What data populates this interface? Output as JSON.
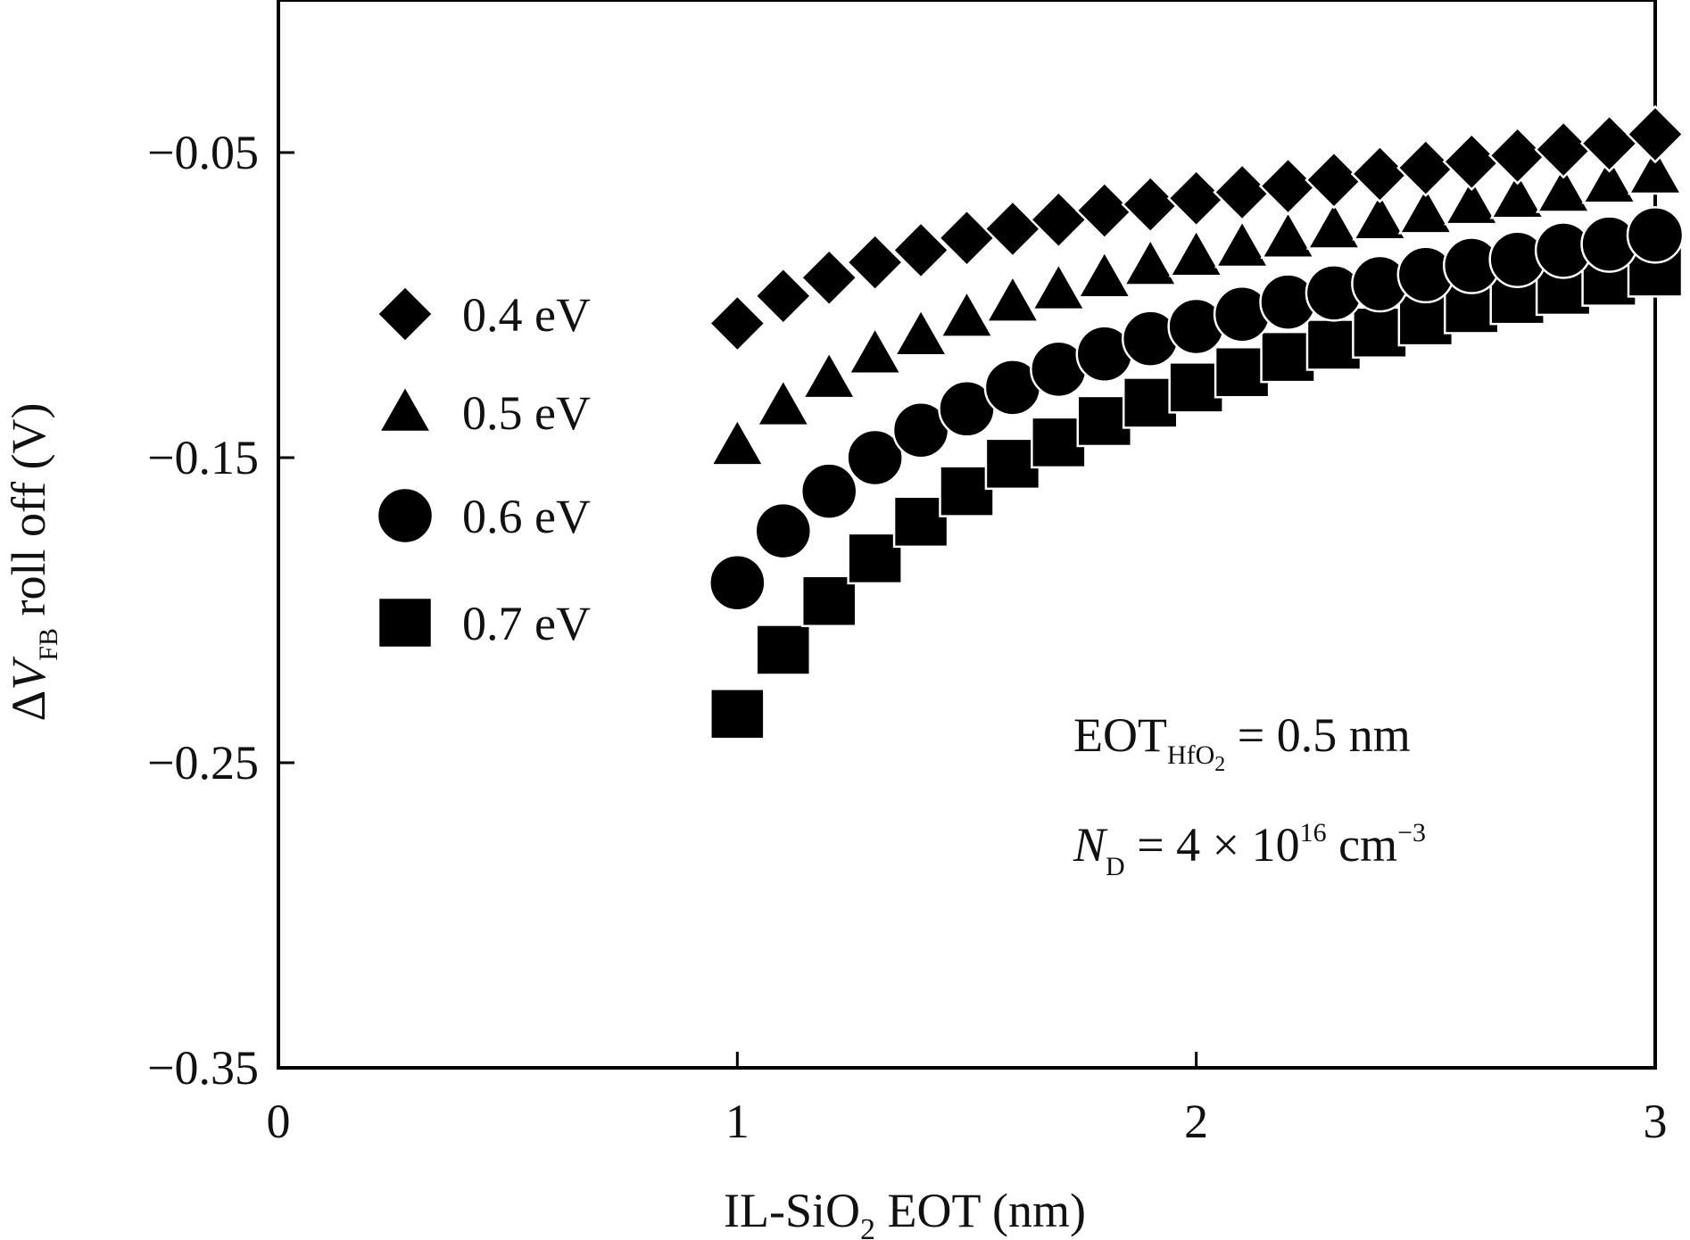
{
  "chart_data": {
    "type": "scatter",
    "xlabel": {
      "main": "IL-SiO",
      "sub": "2",
      "tail": " EOT (nm)"
    },
    "ylabel": {
      "delta": "Δ",
      "var": "V",
      "sub": "FB",
      "tail": " roll off (V)"
    },
    "xlim": [
      0,
      3
    ],
    "ylim": [
      -0.35,
      0.0
    ],
    "x_ticks": [
      {
        "value": 0,
        "label": "0"
      },
      {
        "value": 1,
        "label": "1"
      },
      {
        "value": 2,
        "label": "2"
      },
      {
        "value": 3,
        "label": "3"
      }
    ],
    "y_ticks": [
      {
        "value": -0.05,
        "label": "−0.05"
      },
      {
        "value": -0.15,
        "label": "−0.15"
      },
      {
        "value": -0.25,
        "label": "−0.25"
      },
      {
        "value": -0.35,
        "label": "−0.35"
      }
    ],
    "grid": false,
    "legend_position": "upper-left",
    "series": [
      {
        "name": "0.4 eV",
        "marker": "diamond",
        "color": "#000000",
        "x": [
          1.0,
          1.1,
          1.2,
          1.3,
          1.4,
          1.5,
          1.6,
          1.7,
          1.8,
          1.9,
          2.0,
          2.1,
          2.2,
          2.3,
          2.4,
          2.5,
          2.6,
          2.7,
          2.8,
          2.9,
          3.0
        ],
        "y": [
          -0.106,
          -0.097,
          -0.091,
          -0.086,
          -0.082,
          -0.078,
          -0.075,
          -0.072,
          -0.069,
          -0.067,
          -0.065,
          -0.063,
          -0.061,
          -0.059,
          -0.057,
          -0.055,
          -0.053,
          -0.051,
          -0.049,
          -0.047,
          -0.044
        ]
      },
      {
        "name": "0.5 eV",
        "marker": "triangle",
        "color": "#000000",
        "x": [
          1.0,
          1.1,
          1.2,
          1.3,
          1.4,
          1.5,
          1.6,
          1.7,
          1.8,
          1.9,
          2.0,
          2.1,
          2.2,
          2.3,
          2.4,
          2.5,
          2.6,
          2.7,
          2.8,
          2.9,
          3.0
        ],
        "y": [
          -0.146,
          -0.133,
          -0.124,
          -0.116,
          -0.11,
          -0.104,
          -0.099,
          -0.095,
          -0.091,
          -0.087,
          -0.084,
          -0.081,
          -0.078,
          -0.075,
          -0.072,
          -0.07,
          -0.067,
          -0.065,
          -0.063,
          -0.06,
          -0.057
        ]
      },
      {
        "name": "0.6 eV",
        "marker": "circle",
        "color": "#000000",
        "x": [
          1.0,
          1.1,
          1.2,
          1.3,
          1.4,
          1.5,
          1.6,
          1.7,
          1.8,
          1.9,
          2.0,
          2.1,
          2.2,
          2.3,
          2.4,
          2.5,
          2.6,
          2.7,
          2.8,
          2.9,
          3.0
        ],
        "y": [
          -0.191,
          -0.174,
          -0.161,
          -0.15,
          -0.141,
          -0.134,
          -0.127,
          -0.121,
          -0.116,
          -0.111,
          -0.107,
          -0.103,
          -0.099,
          -0.096,
          -0.093,
          -0.09,
          -0.087,
          -0.085,
          -0.082,
          -0.08,
          -0.077
        ]
      },
      {
        "name": "0.7 eV",
        "marker": "square",
        "color": "#000000",
        "x": [
          1.0,
          1.1,
          1.2,
          1.3,
          1.4,
          1.5,
          1.6,
          1.7,
          1.8,
          1.9,
          2.0,
          2.1,
          2.2,
          2.3,
          2.4,
          2.5,
          2.6,
          2.7,
          2.8,
          2.9,
          3.0
        ],
        "y": [
          -0.234,
          -0.213,
          -0.197,
          -0.183,
          -0.171,
          -0.161,
          -0.152,
          -0.145,
          -0.138,
          -0.132,
          -0.127,
          -0.122,
          -0.117,
          -0.113,
          -0.109,
          -0.105,
          -0.101,
          -0.098,
          -0.095,
          -0.092,
          -0.089
        ]
      }
    ],
    "annotations": {
      "eot": {
        "main": "EOT",
        "sub_a": "HfO",
        "sub_b": "2",
        "tail": " = 0.5 nm"
      },
      "nd": {
        "var": "N",
        "sub": "D",
        "mid": " = 4 × 10",
        "sup": "16",
        "tail": " cm",
        "sup2": "−3"
      }
    }
  }
}
